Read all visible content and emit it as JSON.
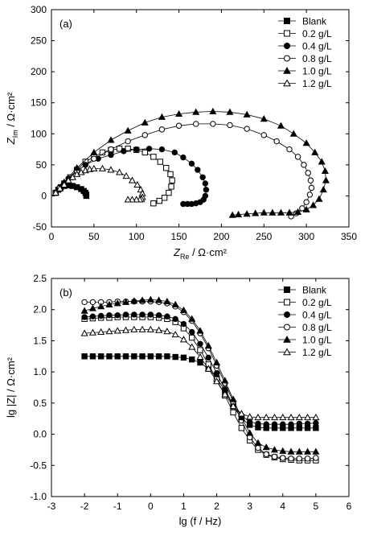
{
  "chart_data": [
    {
      "type": "scatter",
      "panel_label": "(a)",
      "xlabel": {
        "sym": "Z",
        "sub": "Re",
        "unit": " / Ω·cm²"
      },
      "ylabel": {
        "sym": "Z",
        "sub": "Im",
        "unit": " / Ω·cm²"
      },
      "xlim": [
        0,
        350
      ],
      "ylim": [
        -50,
        300
      ],
      "xticks": [
        0,
        50,
        100,
        150,
        200,
        250,
        300,
        350
      ],
      "yticks": [
        -50,
        0,
        50,
        100,
        150,
        200,
        250,
        300
      ],
      "legend_position": "top-right",
      "series": [
        {
          "name": "Blank",
          "marker": "square-filled",
          "x": [
            5,
            8,
            11,
            15,
            20,
            25,
            30,
            35,
            38,
            40,
            41,
            41
          ],
          "y": [
            5,
            10,
            14,
            16,
            17,
            16,
            14,
            11,
            8,
            5,
            2,
            0
          ]
        },
        {
          "name": "0.2 g/L",
          "marker": "square-open",
          "x": [
            5,
            10,
            15,
            22,
            30,
            40,
            50,
            60,
            70,
            80,
            90,
            100,
            110,
            120,
            128,
            135,
            140,
            142,
            141,
            138,
            133,
            127,
            120
          ],
          "y": [
            5,
            12,
            20,
            30,
            42,
            55,
            63,
            70,
            74,
            76,
            76,
            74,
            70,
            63,
            55,
            45,
            35,
            25,
            15,
            5,
            -3,
            -8,
            -12
          ]
        },
        {
          "name": "0.4 g/L",
          "marker": "circle-filled",
          "x": [
            5,
            12,
            20,
            30,
            40,
            55,
            70,
            85,
            100,
            115,
            130,
            145,
            155,
            165,
            172,
            178,
            181,
            182,
            181,
            179,
            175,
            170,
            165,
            160,
            155
          ],
          "y": [
            5,
            15,
            28,
            40,
            50,
            60,
            66,
            72,
            75,
            76,
            75,
            70,
            62,
            52,
            42,
            30,
            20,
            10,
            0,
            -6,
            -10,
            -12,
            -13,
            -13,
            -13
          ]
        },
        {
          "name": "0.8 g/L",
          "marker": "circle-open",
          "x": [
            5,
            15,
            30,
            50,
            70,
            90,
            110,
            130,
            150,
            170,
            190,
            210,
            230,
            250,
            265,
            280,
            290,
            297,
            302,
            305,
            306,
            304,
            300,
            295,
            288,
            282
          ],
          "y": [
            5,
            20,
            40,
            60,
            75,
            88,
            98,
            107,
            113,
            116,
            116,
            114,
            108,
            98,
            88,
            75,
            63,
            50,
            37,
            25,
            13,
            2,
            -10,
            -20,
            -28,
            -33
          ]
        },
        {
          "name": "1.0 g/L",
          "marker": "triangle-filled",
          "x": [
            5,
            15,
            30,
            50,
            70,
            90,
            110,
            130,
            150,
            170,
            190,
            210,
            230,
            250,
            270,
            285,
            300,
            310,
            318,
            322,
            323,
            320,
            315,
            308,
            300,
            290,
            280,
            270,
            260,
            250,
            240,
            230,
            220,
            213
          ],
          "y": [
            5,
            22,
            45,
            70,
            90,
            105,
            118,
            127,
            132,
            135,
            136,
            135,
            131,
            124,
            113,
            100,
            85,
            70,
            55,
            40,
            25,
            10,
            -5,
            -15,
            -22,
            -26,
            -27,
            -27,
            -27,
            -27,
            -28,
            -29,
            -30,
            -31
          ]
        },
        {
          "name": "1.2 g/L",
          "marker": "triangle-open",
          "x": [
            5,
            10,
            15,
            20,
            25,
            30,
            35,
            40,
            45,
            50,
            60,
            70,
            80,
            88,
            95,
            101,
            105,
            107,
            107,
            106,
            104,
            100,
            95,
            90
          ],
          "y": [
            5,
            12,
            18,
            25,
            30,
            35,
            38,
            41,
            43,
            44,
            44,
            42,
            38,
            32,
            25,
            18,
            10,
            4,
            -2,
            -5,
            -6,
            -6,
            -6,
            -6
          ]
        }
      ]
    },
    {
      "type": "scatter",
      "panel_label": "(b)",
      "xlabel": "lg (f / Hz)",
      "ylabel": "lg |Z| / Ω·cm²",
      "xlim": [
        -3,
        6
      ],
      "ylim": [
        -1.0,
        2.5
      ],
      "xticks": [
        -3,
        -2,
        -1,
        0,
        1,
        2,
        3,
        4,
        5,
        6
      ],
      "yticks": [
        "-1.0",
        "-0.5",
        "0.0",
        "0.5",
        "1.0",
        "1.5",
        "2.0",
        "2.5"
      ],
      "legend_position": "top-right",
      "x": [
        -2,
        -1.75,
        -1.5,
        -1.25,
        -1,
        -0.75,
        -0.5,
        -0.25,
        0,
        0.25,
        0.5,
        0.75,
        1,
        1.25,
        1.5,
        1.75,
        2,
        2.25,
        2.5,
        2.75,
        3,
        3.25,
        3.5,
        3.75,
        4,
        4.25,
        4.5,
        4.75,
        5
      ],
      "series": [
        {
          "name": "Blank",
          "marker": "square-filled",
          "y": [
            1.25,
            1.25,
            1.25,
            1.25,
            1.25,
            1.25,
            1.25,
            1.25,
            1.25,
            1.25,
            1.25,
            1.24,
            1.23,
            1.2,
            1.15,
            1.05,
            0.9,
            0.7,
            0.45,
            0.25,
            0.15,
            0.11,
            0.1,
            0.1,
            0.1,
            0.1,
            0.1,
            0.1,
            0.1
          ]
        },
        {
          "name": "0.2 g/L",
          "marker": "square-open",
          "y": [
            1.85,
            1.86,
            1.87,
            1.87,
            1.88,
            1.88,
            1.88,
            1.88,
            1.88,
            1.87,
            1.85,
            1.8,
            1.7,
            1.55,
            1.35,
            1.12,
            0.88,
            0.62,
            0.35,
            0.1,
            -0.1,
            -0.25,
            -0.33,
            -0.37,
            -0.4,
            -0.41,
            -0.42,
            -0.42,
            -0.42
          ]
        },
        {
          "name": "0.4 g/L",
          "marker": "circle-filled",
          "y": [
            1.88,
            1.89,
            1.9,
            1.91,
            1.91,
            1.92,
            1.92,
            1.92,
            1.92,
            1.91,
            1.89,
            1.85,
            1.77,
            1.64,
            1.45,
            1.23,
            0.98,
            0.72,
            0.47,
            0.3,
            0.2,
            0.17,
            0.16,
            0.16,
            0.16,
            0.16,
            0.17,
            0.17,
            0.18
          ]
        },
        {
          "name": "0.8 g/L",
          "marker": "circle-open",
          "y": [
            2.12,
            2.12,
            2.12,
            2.12,
            2.13,
            2.13,
            2.13,
            2.13,
            2.13,
            2.12,
            2.1,
            2.05,
            1.96,
            1.82,
            1.62,
            1.38,
            1.1,
            0.82,
            0.52,
            0.22,
            -0.05,
            -0.22,
            -0.32,
            -0.36,
            -0.38,
            -0.39,
            -0.39,
            -0.39,
            -0.38
          ]
        },
        {
          "name": "1.0 g/L",
          "marker": "triangle-filled",
          "y": [
            1.98,
            2.02,
            2.05,
            2.08,
            2.1,
            2.12,
            2.14,
            2.15,
            2.16,
            2.15,
            2.13,
            2.08,
            1.99,
            1.85,
            1.66,
            1.42,
            1.15,
            0.86,
            0.56,
            0.27,
            0.02,
            -0.14,
            -0.21,
            -0.25,
            -0.27,
            -0.28,
            -0.28,
            -0.28,
            -0.28
          ]
        },
        {
          "name": "1.2 g/L",
          "marker": "triangle-open",
          "y": [
            1.62,
            1.63,
            1.64,
            1.65,
            1.66,
            1.67,
            1.68,
            1.68,
            1.68,
            1.67,
            1.65,
            1.6,
            1.52,
            1.4,
            1.24,
            1.05,
            0.85,
            0.64,
            0.45,
            0.33,
            0.28,
            0.27,
            0.27,
            0.27,
            0.27,
            0.27,
            0.27,
            0.27,
            0.27
          ]
        }
      ]
    }
  ]
}
